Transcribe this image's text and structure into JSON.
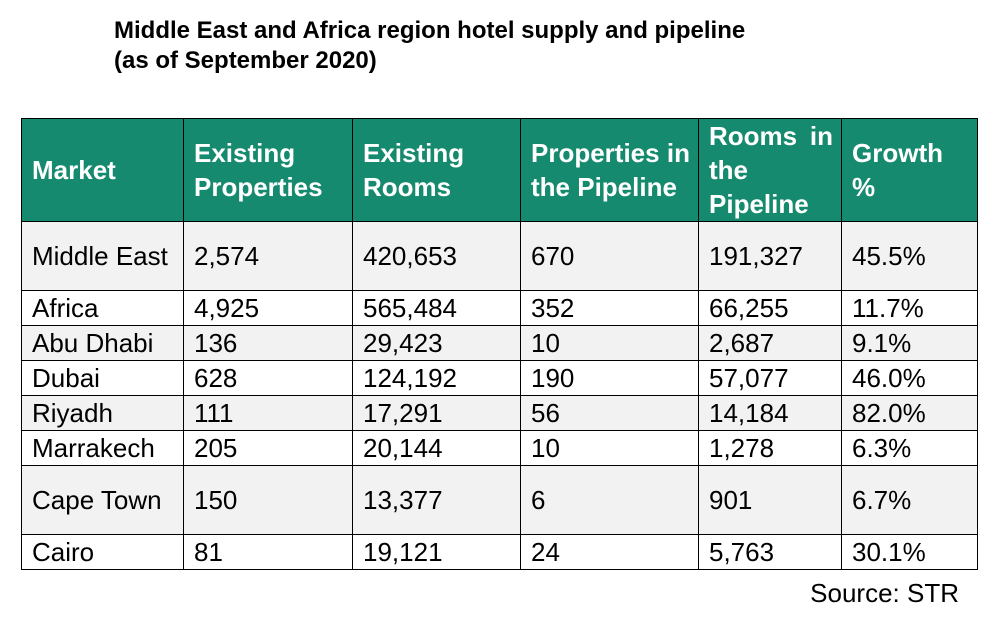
{
  "title_line1": "Middle East and Africa region hotel supply and pipeline",
  "title_line2": "(as of September 2020)",
  "source": "Source: STR",
  "colors": {
    "header_bg": "#168a6e",
    "header_text": "#ffffff",
    "row_alt_bg": "#f2f2f2"
  },
  "chart_data": {
    "type": "table",
    "columns": [
      "Market",
      "Existing Properties",
      "Existing Rooms",
      "Properties in the Pipeline",
      "Rooms in the Pipeline",
      "Growth %"
    ],
    "rows": [
      [
        "Middle East",
        "2,574",
        "420,653",
        "670",
        "191,327",
        "45.5%"
      ],
      [
        "Africa",
        "4,925",
        "565,484",
        "352",
        "66,255",
        "11.7%"
      ],
      [
        "Abu Dhabi",
        "136",
        "29,423",
        "10",
        "2,687",
        "9.1%"
      ],
      [
        "Dubai",
        "628",
        "124,192",
        "190",
        "57,077",
        "46.0%"
      ],
      [
        "Riyadh",
        "111",
        "17,291",
        "56",
        "14,184",
        "82.0%"
      ],
      [
        "Marrakech",
        "205",
        "20,144",
        "10",
        "1,278",
        "6.3%"
      ],
      [
        "Cape Town",
        "150",
        "13,377",
        "6",
        "901",
        "6.7%"
      ],
      [
        "Cairo",
        "81",
        "19,121",
        "24",
        "5,763",
        "30.1%"
      ]
    ]
  }
}
